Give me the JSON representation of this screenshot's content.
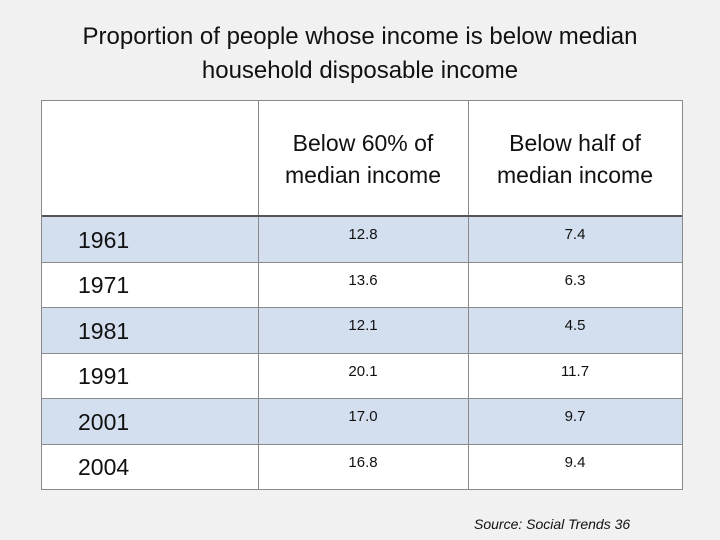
{
  "title_line1": "Proportion of people whose income is below median",
  "title_line2": "household disposable income",
  "source": "Source: Social Trends 36",
  "colors": {
    "background": "#f1f1f1",
    "band": "#d3deef",
    "grid": "#8a8a8a"
  },
  "chart_data": {
    "type": "table",
    "columns": [
      "",
      "Below 60% of median income",
      "Below half of median income"
    ],
    "header_lines": [
      [
        "Below 60% of",
        "median income"
      ],
      [
        "Below half of",
        "median income"
      ]
    ],
    "rows": [
      {
        "year": "1961",
        "below_60": "12.8",
        "below_half": "7.4"
      },
      {
        "year": "1971",
        "below_60": "13.6",
        "below_half": "6.3"
      },
      {
        "year": "1981",
        "below_60": "12.1",
        "below_half": "4.5"
      },
      {
        "year": "1991",
        "below_60": "20.1",
        "below_half": "11.7"
      },
      {
        "year": "2001",
        "below_60": "17.0",
        "below_half": "9.7"
      },
      {
        "year": "2004",
        "below_60": "16.8",
        "below_half": "9.4"
      }
    ]
  }
}
